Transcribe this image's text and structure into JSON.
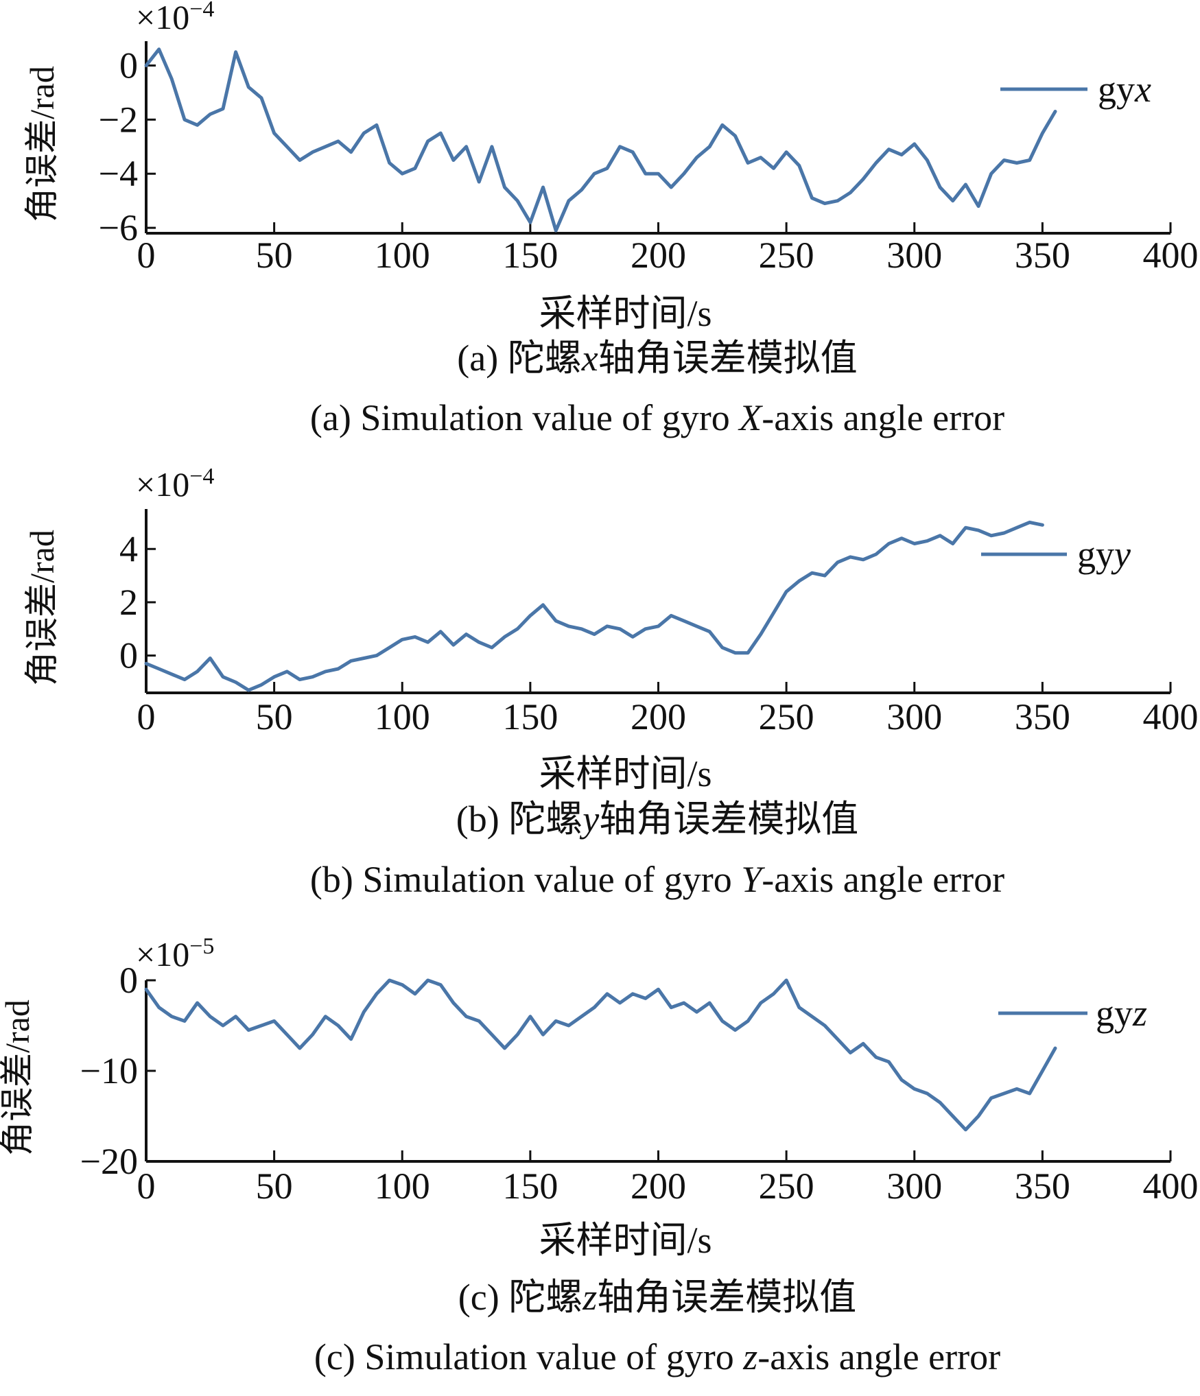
{
  "panels": [
    {
      "caption_cn_prefix": "(a) 陀螺",
      "caption_cn_axis": "x",
      "caption_cn_suffix": "轴角误差模拟值",
      "caption_en_prefix": "(a) Simulation value of gyro ",
      "caption_en_axis": "X",
      "caption_en_suffix": "-axis angle error"
    },
    {
      "caption_cn_prefix": "(b) 陀螺",
      "caption_cn_axis": "y",
      "caption_cn_suffix": "轴角误差模拟值",
      "caption_en_prefix": "(b) Simulation value of gyro ",
      "caption_en_axis": "Y",
      "caption_en_suffix": "-axis angle error"
    },
    {
      "caption_cn_prefix": "(c) 陀螺",
      "caption_cn_axis": "z",
      "caption_cn_suffix": "轴角误差模拟值",
      "caption_en_prefix": "(c) Simulation value of gyro ",
      "caption_en_axis": "z",
      "caption_en_suffix": "-axis angle error"
    }
  ],
  "style": {
    "line_color": "#4a76a8",
    "axis_color": "#111111"
  },
  "chart_data": [
    {
      "type": "line",
      "xlabel": "采样时间/s",
      "ylabel": "角误差/rad",
      "scale_base": "×10",
      "scale_exp": "−4",
      "xlim": [
        0,
        400
      ],
      "ylim": [
        -6.2,
        0.9
      ],
      "x_ticks": [
        0,
        50,
        100,
        150,
        200,
        250,
        300,
        350,
        400
      ],
      "x_tick_labels": [
        "0",
        "50",
        "100",
        "150",
        "200",
        "250",
        "300",
        "350",
        "400"
      ],
      "y_ticks": [
        0,
        -2,
        -4,
        -6
      ],
      "y_tick_labels": [
        "0",
        "−2",
        "−4",
        "−6"
      ],
      "legend_prefix": "gy",
      "legend_suffix": "x",
      "legend_position": "top-right",
      "series": [
        {
          "x": [
            0,
            5,
            10,
            15,
            20,
            25,
            30,
            35,
            40,
            45,
            50,
            55,
            60,
            65,
            70,
            75,
            80,
            85,
            90,
            95,
            100,
            105,
            110,
            115,
            120,
            125,
            130,
            135,
            140,
            145,
            150,
            155,
            160,
            165,
            170,
            175,
            180,
            185,
            190,
            195,
            200,
            205,
            210,
            215,
            220,
            225,
            230,
            235,
            240,
            245,
            250,
            255,
            260,
            265,
            270,
            275,
            280,
            285,
            290,
            295,
            300,
            305,
            310,
            315,
            320,
            325,
            330,
            335,
            340,
            345,
            350,
            355
          ],
          "y": [
            0,
            0.6,
            -0.5,
            -2.0,
            -2.2,
            -1.8,
            -1.6,
            0.5,
            -0.8,
            -1.2,
            -2.5,
            -3.0,
            -3.5,
            -3.2,
            -3.0,
            -2.8,
            -3.2,
            -2.5,
            -2.2,
            -3.6,
            -4.0,
            -3.8,
            -2.8,
            -2.5,
            -3.5,
            -3.0,
            -4.3,
            -3.0,
            -4.5,
            -5.0,
            -5.8,
            -4.5,
            -6.1,
            -5.0,
            -4.6,
            -4.0,
            -3.8,
            -3.0,
            -3.2,
            -4.0,
            -4.0,
            -4.5,
            -4.0,
            -3.4,
            -3.0,
            -2.2,
            -2.6,
            -3.6,
            -3.4,
            -3.8,
            -3.2,
            -3.7,
            -4.9,
            -5.1,
            -5.0,
            -4.7,
            -4.2,
            -3.6,
            -3.1,
            -3.3,
            -2.9,
            -3.5,
            -4.5,
            -5.0,
            -4.4,
            -5.2,
            -4.0,
            -3.5,
            -3.6,
            -3.5,
            -2.5,
            -1.7
          ]
        }
      ]
    },
    {
      "type": "line",
      "xlabel": "采样时间/s",
      "ylabel": "角误差/rad",
      "scale_base": "×10",
      "scale_exp": "−4",
      "xlim": [
        0,
        400
      ],
      "ylim": [
        -1.4,
        5.5
      ],
      "x_ticks": [
        0,
        50,
        100,
        150,
        200,
        250,
        300,
        350,
        400
      ],
      "x_tick_labels": [
        "0",
        "50",
        "100",
        "150",
        "200",
        "250",
        "300",
        "350",
        "400"
      ],
      "y_ticks": [
        4,
        2,
        0
      ],
      "y_tick_labels": [
        "4",
        "2",
        "0"
      ],
      "legend_prefix": "gy",
      "legend_suffix": "y",
      "legend_position": "top-right",
      "series": [
        {
          "x": [
            0,
            5,
            10,
            15,
            20,
            25,
            30,
            35,
            40,
            45,
            50,
            55,
            60,
            65,
            70,
            75,
            80,
            85,
            90,
            95,
            100,
            105,
            110,
            115,
            120,
            125,
            130,
            135,
            140,
            145,
            150,
            155,
            160,
            165,
            170,
            175,
            180,
            185,
            190,
            195,
            200,
            205,
            210,
            215,
            220,
            225,
            230,
            235,
            240,
            245,
            250,
            255,
            260,
            265,
            270,
            275,
            280,
            285,
            290,
            295,
            300,
            305,
            310,
            315,
            320,
            325,
            330,
            335,
            340,
            345,
            350
          ],
          "y": [
            -0.3,
            -0.5,
            -0.7,
            -0.9,
            -0.6,
            -0.1,
            -0.8,
            -1.0,
            -1.3,
            -1.1,
            -0.8,
            -0.6,
            -0.9,
            -0.8,
            -0.6,
            -0.5,
            -0.2,
            -0.1,
            0.0,
            0.3,
            0.6,
            0.7,
            0.5,
            0.9,
            0.4,
            0.8,
            0.5,
            0.3,
            0.7,
            1.0,
            1.5,
            1.9,
            1.3,
            1.1,
            1.0,
            0.8,
            1.1,
            1.0,
            0.7,
            1.0,
            1.1,
            1.5,
            1.3,
            1.1,
            0.9,
            0.3,
            0.1,
            0.1,
            0.8,
            1.6,
            2.4,
            2.8,
            3.1,
            3.0,
            3.5,
            3.7,
            3.6,
            3.8,
            4.2,
            4.4,
            4.2,
            4.3,
            4.5,
            4.2,
            4.8,
            4.7,
            4.5,
            4.6,
            4.8,
            5.0,
            4.9
          ]
        }
      ]
    },
    {
      "type": "line",
      "xlabel": "采样时间/s",
      "ylabel": "角误差/rad",
      "scale_base": "×10",
      "scale_exp": "−5",
      "xlim": [
        0,
        400
      ],
      "ylim": [
        -20,
        0
      ],
      "x_ticks": [
        0,
        50,
        100,
        150,
        200,
        250,
        300,
        350,
        400
      ],
      "x_tick_labels": [
        "0",
        "50",
        "100",
        "150",
        "200",
        "250",
        "300",
        "350",
        "400"
      ],
      "y_ticks": [
        0,
        -10,
        -20
      ],
      "y_tick_labels": [
        "0",
        "−10",
        "−20"
      ],
      "legend_prefix": "gy",
      "legend_suffix": "z",
      "legend_position": "top-right",
      "series": [
        {
          "x": [
            0,
            5,
            10,
            15,
            20,
            25,
            30,
            35,
            40,
            45,
            50,
            55,
            60,
            65,
            70,
            75,
            80,
            85,
            90,
            95,
            100,
            105,
            110,
            115,
            120,
            125,
            130,
            135,
            140,
            145,
            150,
            155,
            160,
            165,
            170,
            175,
            180,
            185,
            190,
            195,
            200,
            205,
            210,
            215,
            220,
            225,
            230,
            235,
            240,
            245,
            250,
            255,
            260,
            265,
            270,
            275,
            280,
            285,
            290,
            295,
            300,
            305,
            310,
            315,
            320,
            325,
            330,
            335,
            340,
            345,
            350,
            355
          ],
          "y": [
            -1.0,
            -3.0,
            -4.0,
            -4.5,
            -2.5,
            -4.0,
            -5.0,
            -4.0,
            -5.5,
            -5.0,
            -4.5,
            -6.0,
            -7.5,
            -6.0,
            -4.0,
            -5.0,
            -6.5,
            -3.5,
            -1.5,
            0.0,
            -0.5,
            -1.5,
            0.0,
            -0.5,
            -2.5,
            -4.0,
            -4.5,
            -6.0,
            -7.5,
            -6.0,
            -4.0,
            -6.0,
            -4.5,
            -5.0,
            -4.0,
            -3.0,
            -1.5,
            -2.5,
            -1.5,
            -2.0,
            -1.0,
            -3.0,
            -2.5,
            -3.5,
            -2.5,
            -4.5,
            -5.5,
            -4.5,
            -2.5,
            -1.5,
            0.0,
            -3.0,
            -4.0,
            -5.0,
            -6.5,
            -8.0,
            -7.0,
            -8.5,
            -9.0,
            -11.0,
            -12.0,
            -12.5,
            -13.5,
            -15.0,
            -16.5,
            -15.0,
            -13.0,
            -12.5,
            -12.0,
            -12.5,
            -10.0,
            -7.5
          ]
        }
      ]
    }
  ]
}
